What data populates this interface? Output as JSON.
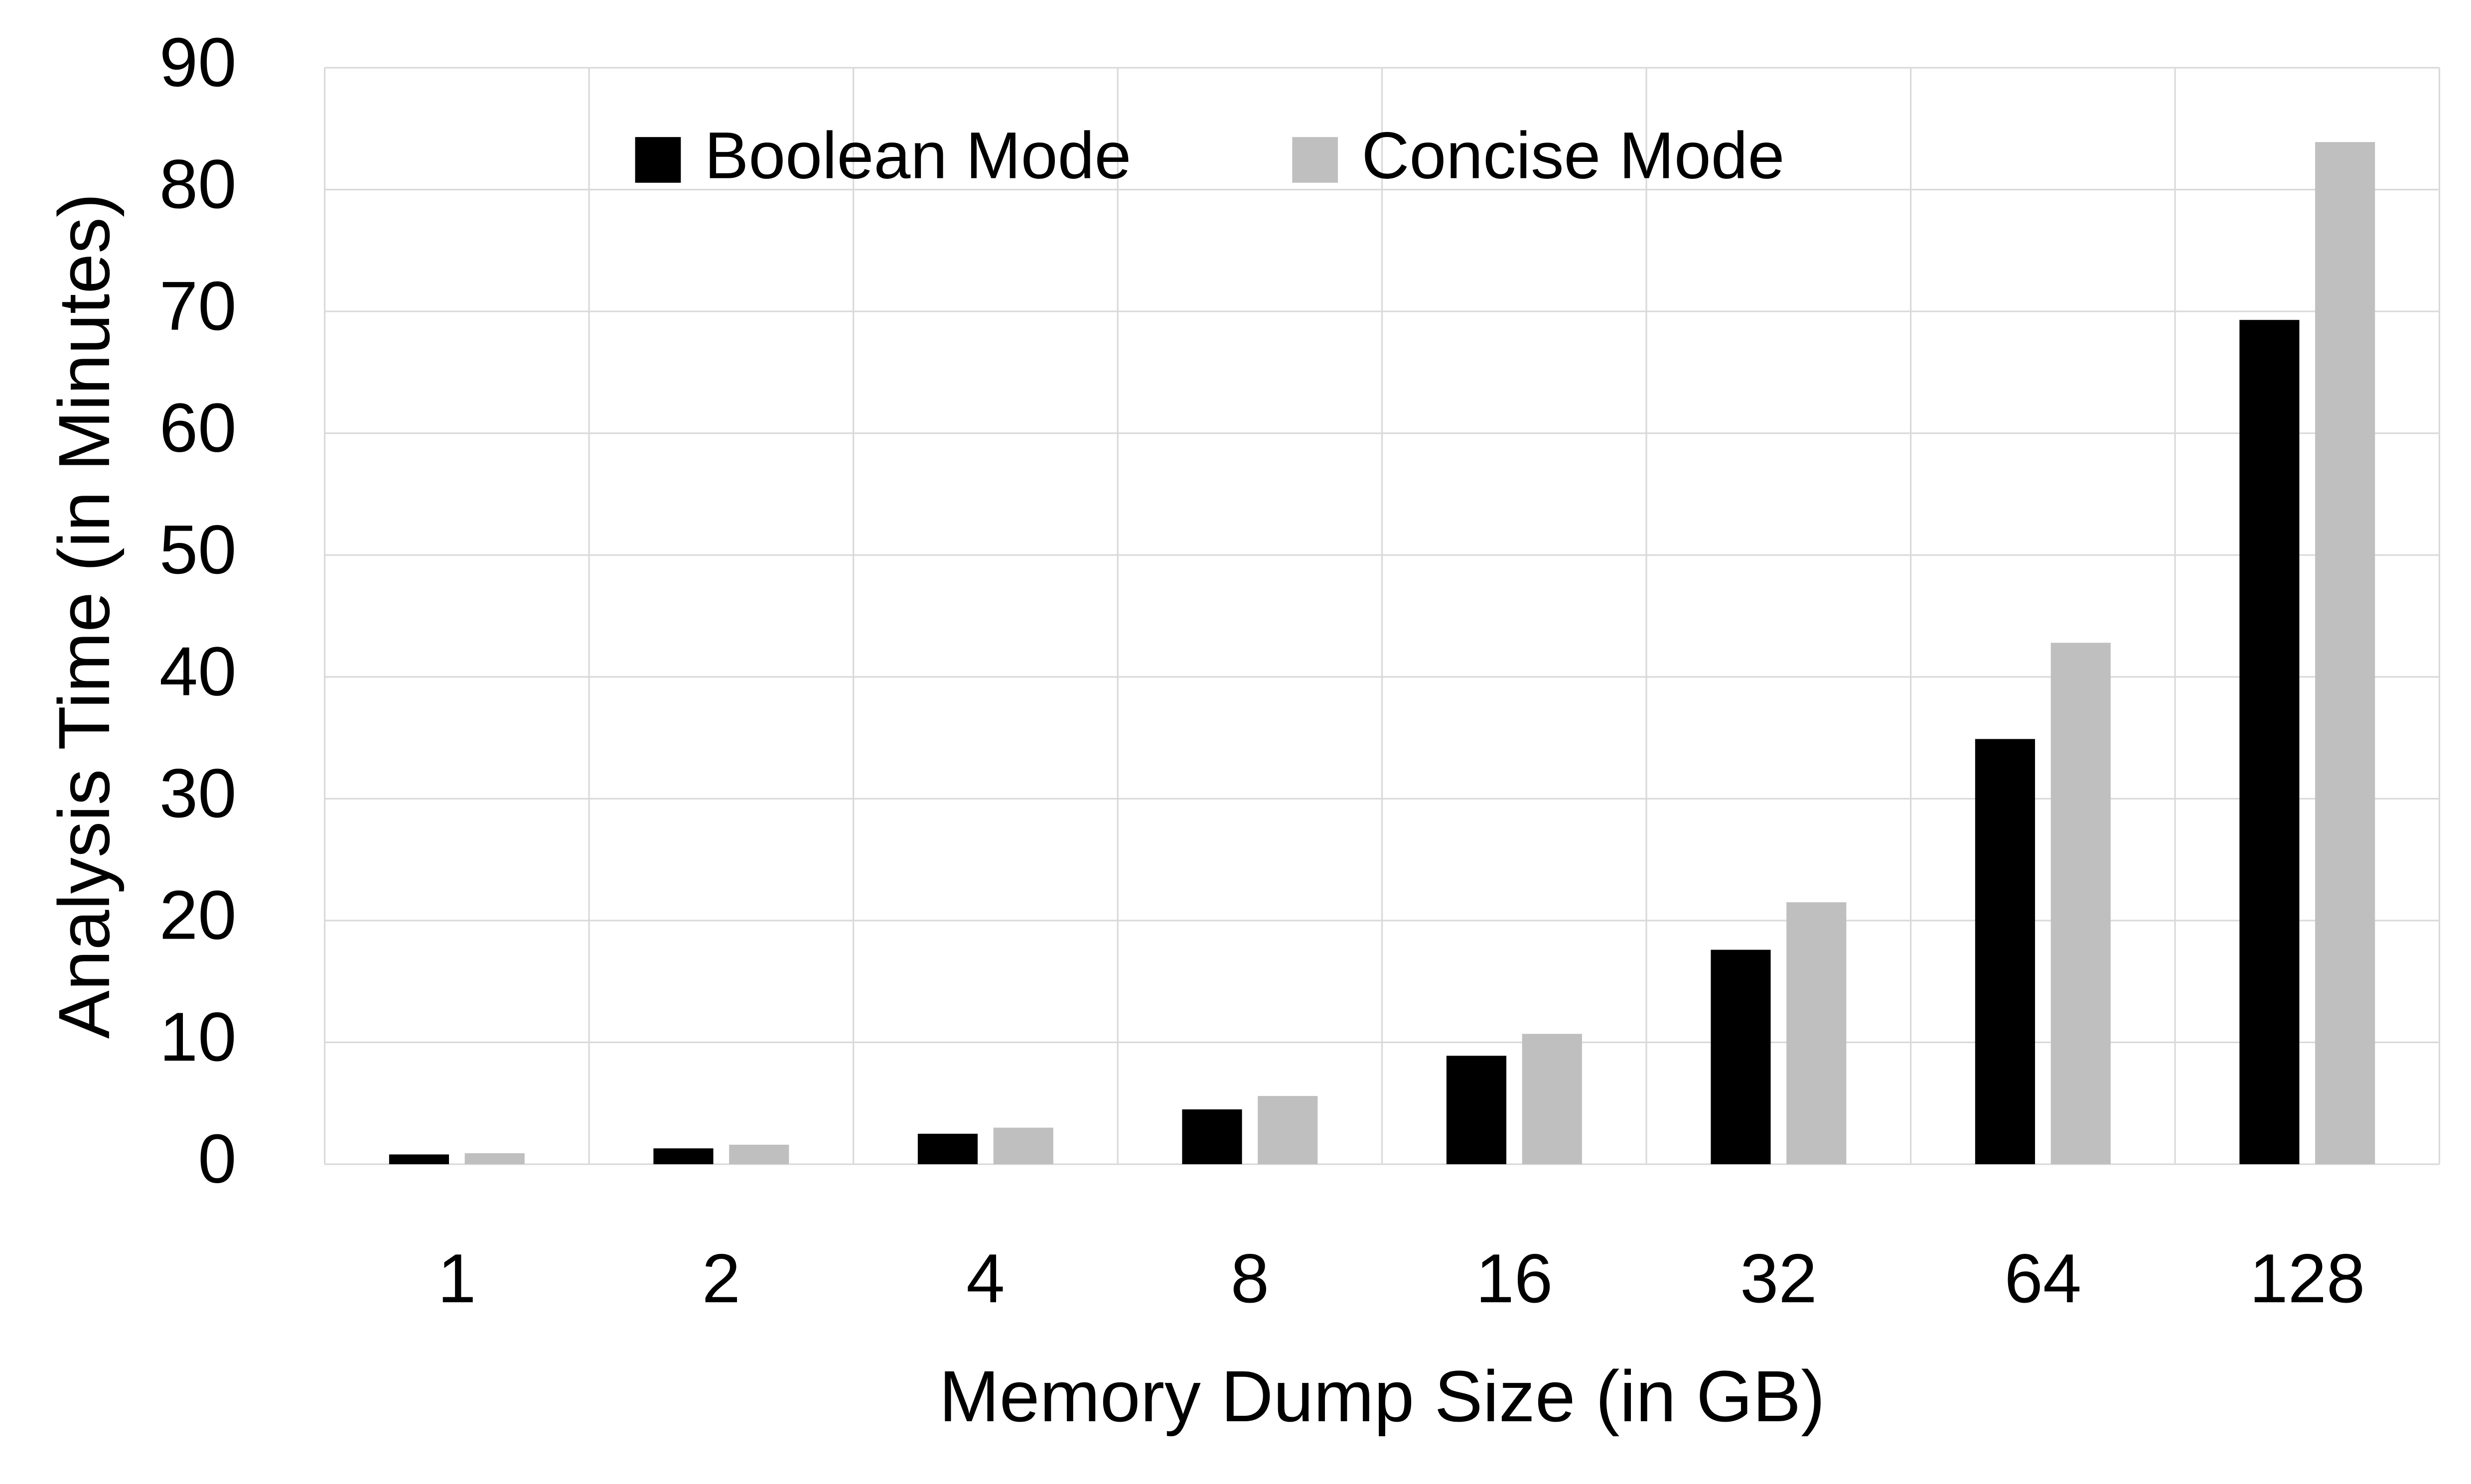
{
  "chart_data": {
    "type": "bar",
    "x_label": "Memory Dump Size (in GB)",
    "y_label": "Analysis Time (in Minutes)",
    "categories": [
      "1",
      "2",
      "4",
      "8",
      "16",
      "32",
      "64",
      "128"
    ],
    "series": [
      {
        "name": "Boolean Mode",
        "color": "#000000",
        "values": [
          0.8,
          1.3,
          2.5,
          4.5,
          8.9,
          17.6,
          34.9,
          69.3
        ]
      },
      {
        "name": "Concise Mode",
        "color": "#bfbfbf",
        "values": [
          0.9,
          1.6,
          3.0,
          5.6,
          10.7,
          21.5,
          42.8,
          83.9
        ]
      }
    ],
    "ylim": [
      0,
      90
    ],
    "yticks": [
      0,
      10,
      20,
      30,
      40,
      50,
      60,
      70,
      80,
      90
    ],
    "grid": true
  }
}
